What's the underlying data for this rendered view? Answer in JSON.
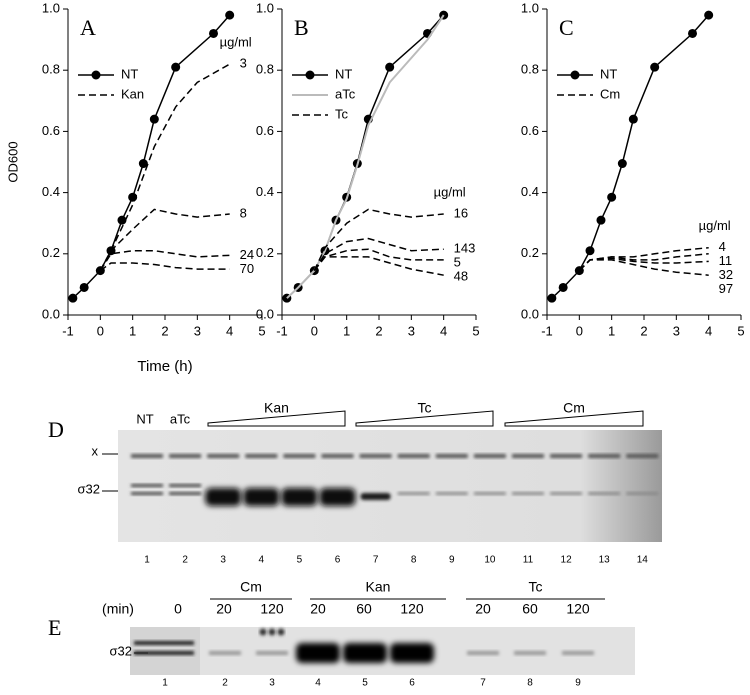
{
  "chart_data": [
    {
      "type": "line",
      "panel_label": "A",
      "x_label": "Time (h)",
      "y_label": "OD600",
      "xlim": [
        -1,
        5
      ],
      "xticks": [
        -1,
        0,
        1,
        2,
        3,
        4,
        5
      ],
      "ylim": [
        0,
        1
      ],
      "yticks": [
        {
          "value": 0,
          "label": "0.0"
        },
        0.2,
        0.4,
        0.6,
        0.8,
        {
          "value": 1,
          "label": "1.0"
        }
      ],
      "series": [
        {
          "name": "NT",
          "color": "#000000",
          "style": "solid",
          "marker": "circle",
          "x": [
            -0.85,
            -0.5,
            0,
            0.33,
            0.67,
            1,
            1.33,
            1.67,
            2.33,
            3.5,
            4
          ],
          "values": [
            0.055,
            0.09,
            0.145,
            0.21,
            0.31,
            0.385,
            0.495,
            0.64,
            0.81,
            0.92,
            0.98
          ]
        },
        {
          "name": "Kan",
          "color": "#000000",
          "style": "dashed",
          "dose_unit": "µg/ml",
          "x": [
            0,
            0.33,
            1,
            1.67,
            2.33,
            3,
            4
          ],
          "doses": [
            {
              "label": "3",
              "values": [
                0.145,
                0.21,
                0.36,
                0.55,
                0.68,
                0.76,
                0.82
              ]
            },
            {
              "label": "8",
              "values": [
                0.145,
                0.21,
                0.28,
                0.345,
                0.33,
                0.32,
                0.33
              ]
            },
            {
              "label": "24",
              "values": [
                0.145,
                0.2,
                0.21,
                0.21,
                0.2,
                0.19,
                0.195
              ]
            },
            {
              "label": "70",
              "values": [
                0.145,
                0.17,
                0.17,
                0.165,
                0.155,
                0.15,
                0.15
              ]
            }
          ]
        }
      ]
    },
    {
      "type": "line",
      "panel_label": "B",
      "xlim": [
        -1,
        5
      ],
      "xticks": [
        -1,
        0,
        1,
        2,
        3,
        4,
        5
      ],
      "ylim": [
        0,
        1
      ],
      "yticks": [
        {
          "value": 0,
          "label": "0.0"
        },
        0.2,
        0.4,
        0.6,
        0.8,
        {
          "value": 1,
          "label": "1.0"
        }
      ],
      "series": [
        {
          "name": "NT",
          "color": "#000000",
          "style": "solid",
          "marker": "circle",
          "x": [
            -0.85,
            -0.5,
            0,
            0.33,
            0.67,
            1,
            1.33,
            1.67,
            2.33,
            3.5,
            4
          ],
          "values": [
            0.055,
            0.09,
            0.145,
            0.21,
            0.31,
            0.385,
            0.495,
            0.64,
            0.81,
            0.92,
            0.98
          ]
        },
        {
          "name": "aTc",
          "color": "#bbbbbb",
          "style": "solid",
          "x": [
            -0.85,
            -0.5,
            0,
            0.33,
            0.67,
            1,
            1.33,
            1.67,
            2.33,
            3.5,
            4
          ],
          "values": [
            0.055,
            0.09,
            0.145,
            0.21,
            0.31,
            0.38,
            0.49,
            0.62,
            0.76,
            0.9,
            0.98
          ]
        },
        {
          "name": "Tc",
          "color": "#000000",
          "style": "dashed",
          "dose_unit": "µg/ml",
          "x": [
            0,
            0.33,
            1,
            1.67,
            2.33,
            3,
            4
          ],
          "doses": [
            {
              "label": "16",
              "values": [
                0.145,
                0.22,
                0.3,
                0.345,
                0.33,
                0.32,
                0.33
              ]
            },
            {
              "label": "143",
              "values": [
                0.145,
                0.2,
                0.24,
                0.25,
                0.23,
                0.21,
                0.215
              ]
            },
            {
              "label": "5",
              "values": [
                0.145,
                0.19,
                0.21,
                0.215,
                0.19,
                0.18,
                0.18
              ]
            },
            {
              "label": "48",
              "values": [
                0.145,
                0.19,
                0.19,
                0.19,
                0.17,
                0.15,
                0.13
              ]
            }
          ]
        }
      ]
    },
    {
      "type": "line",
      "panel_label": "C",
      "xlim": [
        -1,
        5
      ],
      "xticks": [
        -1,
        0,
        1,
        2,
        3,
        4,
        5
      ],
      "ylim": [
        0,
        1
      ],
      "yticks": [
        {
          "value": 0,
          "label": "0.0"
        },
        0.2,
        0.4,
        0.6,
        0.8,
        {
          "value": 1,
          "label": "1.0"
        }
      ],
      "series": [
        {
          "name": "NT",
          "color": "#000000",
          "style": "solid",
          "marker": "circle",
          "x": [
            -0.85,
            -0.5,
            0,
            0.33,
            0.67,
            1,
            1.33,
            1.67,
            2.33,
            3.5,
            4
          ],
          "values": [
            0.055,
            0.09,
            0.145,
            0.21,
            0.31,
            0.385,
            0.495,
            0.64,
            0.81,
            0.92,
            0.98
          ]
        },
        {
          "name": "Cm",
          "color": "#000000",
          "style": "dashed",
          "dose_unit": "µg/ml",
          "x": [
            0,
            0.33,
            1,
            1.67,
            2.33,
            3,
            4
          ],
          "doses": [
            {
              "label": "4",
              "values": [
                0.145,
                0.18,
                0.19,
                0.19,
                0.2,
                0.21,
                0.22
              ]
            },
            {
              "label": "11",
              "values": [
                0.145,
                0.18,
                0.19,
                0.18,
                0.18,
                0.19,
                0.2
              ]
            },
            {
              "label": "32",
              "values": [
                0.145,
                0.18,
                0.185,
                0.175,
                0.17,
                0.17,
                0.175
              ]
            },
            {
              "label": "97",
              "values": [
                0.145,
                0.18,
                0.18,
                0.165,
                0.15,
                0.14,
                0.13
              ]
            }
          ]
        }
      ]
    }
  ],
  "blot_d": {
    "panel_label": "D",
    "lanes_top": [
      "NT",
      "aTc"
    ],
    "treatments": [
      "Kan",
      "Tc",
      "Cm"
    ],
    "band_labels": [
      "x",
      "σ32"
    ],
    "lane_numbers": [
      "1",
      "2",
      "3",
      "4",
      "5",
      "6",
      "7",
      "8",
      "9",
      "10",
      "11",
      "12",
      "13",
      "14"
    ]
  },
  "blot_e": {
    "panel_label": "E",
    "time_unit": "(min)",
    "lane1_time": "0",
    "groups": [
      {
        "name": "Cm",
        "times": [
          "20",
          "120"
        ]
      },
      {
        "name": "Kan",
        "times": [
          "20",
          "60",
          "120"
        ]
      },
      {
        "name": "Tc",
        "times": [
          "20",
          "60",
          "120"
        ]
      }
    ],
    "band_label": "σ32",
    "lane_numbers": [
      "1",
      "2",
      "3",
      "4",
      "5",
      "6",
      "7",
      "8",
      "9"
    ]
  }
}
